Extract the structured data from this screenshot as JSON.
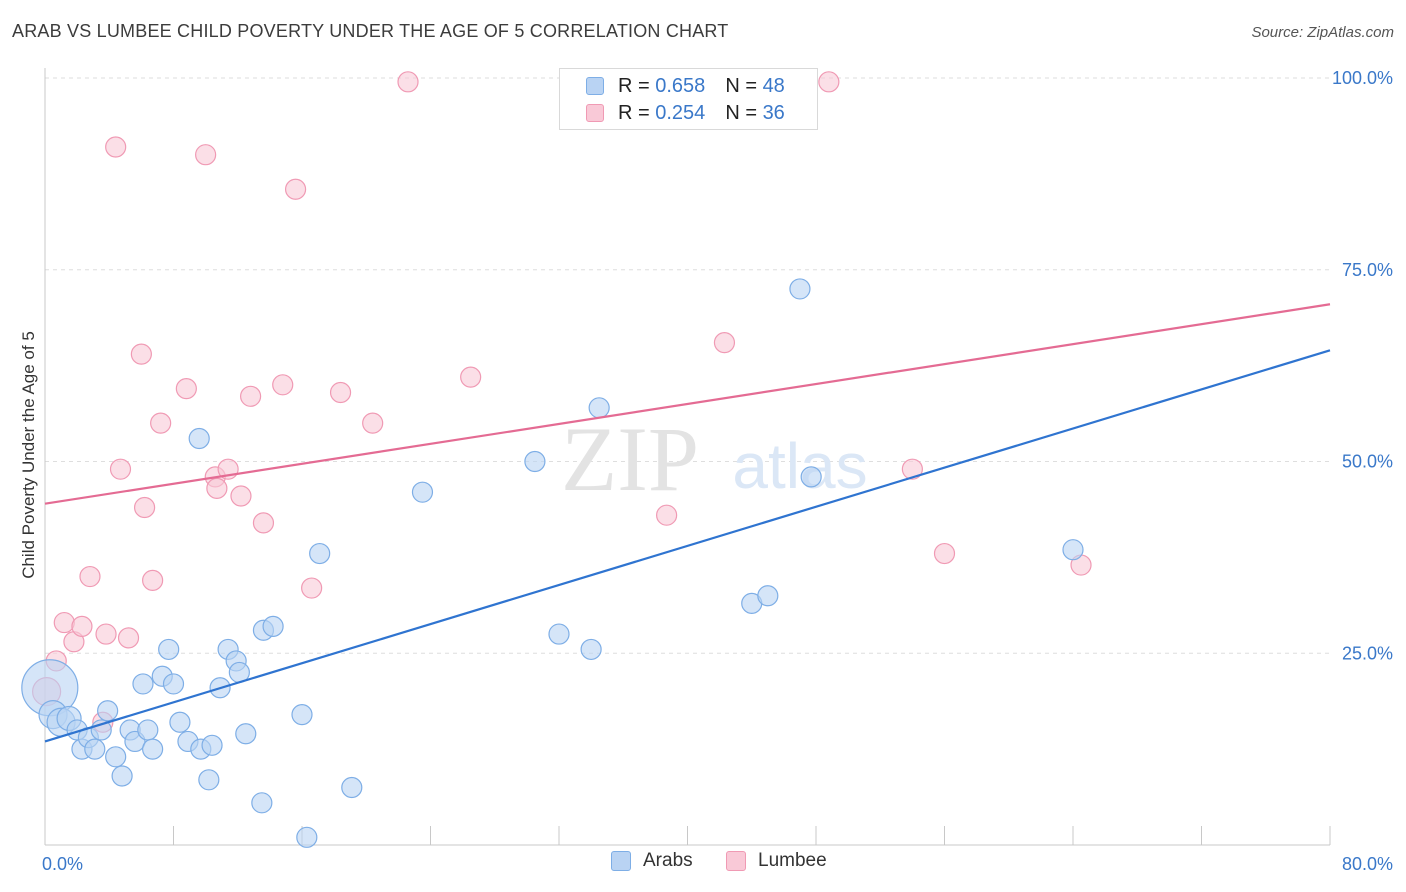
{
  "title": "ARAB VS LUMBEE CHILD POVERTY UNDER THE AGE OF 5 CORRELATION CHART",
  "source": "Source: ZipAtlas.com",
  "watermark": {
    "zip": "ZIP",
    "atlas": "atlas"
  },
  "legend": [
    {
      "r_label": "R = ",
      "r_value": "0.658",
      "n_label": "N = ",
      "n_value": "48"
    },
    {
      "r_label": "R = ",
      "r_value": "0.254",
      "n_label": "N = ",
      "n_value": "36"
    }
  ],
  "colors": {
    "arabs_fill": "#b9d3f3",
    "arabs_stroke": "#7eaee6",
    "arabs_line": "#2f74d0",
    "lumbee_fill": "#f9c9d7",
    "lumbee_stroke": "#f09ab4",
    "lumbee_line": "#e46b93",
    "tick_label": "#3a78c9"
  },
  "chart_data": {
    "type": "scatter",
    "title": "ARAB VS LUMBEE CHILD POVERTY UNDER THE AGE OF 5 CORRELATION CHART",
    "xlabel": "",
    "ylabel": "Child Poverty Under the Age of 5",
    "xlim": [
      0,
      80
    ],
    "ylim": [
      0,
      100
    ],
    "x_tick_labels": [
      {
        "value": 0,
        "label": "0.0%"
      },
      {
        "value": 80,
        "label": "80.0%"
      }
    ],
    "y_tick_labels": [
      {
        "value": 25,
        "label": "25.0%"
      },
      {
        "value": 50,
        "label": "50.0%"
      },
      {
        "value": 75,
        "label": "75.0%"
      },
      {
        "value": 100,
        "label": "100.0%"
      }
    ],
    "grid": true,
    "legend_position": "top-center",
    "series": [
      {
        "name": "Arabs",
        "r": 0.658,
        "n": 48,
        "trend": {
          "x0": 0,
          "y0": 13.5,
          "x1": 80,
          "y1": 64.5
        },
        "points": [
          [
            0.3,
            20.5,
            28
          ],
          [
            0.5,
            17.0,
            14
          ],
          [
            1.0,
            16.0,
            14
          ],
          [
            1.5,
            16.5,
            12
          ],
          [
            2.0,
            15.0,
            10
          ],
          [
            2.3,
            12.5,
            10
          ],
          [
            2.7,
            14.0,
            10
          ],
          [
            3.1,
            12.5,
            10
          ],
          [
            3.5,
            15.0,
            10
          ],
          [
            3.9,
            17.5,
            10
          ],
          [
            4.4,
            11.5,
            10
          ],
          [
            4.8,
            9.0,
            10
          ],
          [
            5.3,
            15.0,
            10
          ],
          [
            5.6,
            13.5,
            10
          ],
          [
            6.1,
            21.0,
            10
          ],
          [
            6.4,
            15.0,
            10
          ],
          [
            6.7,
            12.5,
            10
          ],
          [
            7.3,
            22.0,
            10
          ],
          [
            7.7,
            25.5,
            10
          ],
          [
            8.0,
            21.0,
            10
          ],
          [
            8.4,
            16.0,
            10
          ],
          [
            8.9,
            13.5,
            10
          ],
          [
            9.6,
            53.0,
            10
          ],
          [
            9.7,
            12.5,
            10
          ],
          [
            10.2,
            8.5,
            10
          ],
          [
            10.4,
            13.0,
            10
          ],
          [
            10.9,
            20.5,
            10
          ],
          [
            11.4,
            25.5,
            10
          ],
          [
            11.9,
            24.0,
            10
          ],
          [
            12.1,
            22.5,
            10
          ],
          [
            12.5,
            14.5,
            10
          ],
          [
            13.5,
            5.5,
            10
          ],
          [
            13.6,
            28.0,
            10
          ],
          [
            14.2,
            28.5,
            10
          ],
          [
            16.3,
            1.0,
            10
          ],
          [
            16.0,
            17.0,
            10
          ],
          [
            17.1,
            38.0,
            10
          ],
          [
            19.1,
            7.5,
            10
          ],
          [
            23.5,
            46.0,
            10
          ],
          [
            30.5,
            50.0,
            10
          ],
          [
            32.0,
            27.5,
            10
          ],
          [
            34.0,
            25.5,
            10
          ],
          [
            34.5,
            57.0,
            10
          ],
          [
            44.0,
            31.5,
            10
          ],
          [
            45.0,
            32.5,
            10
          ],
          [
            47.0,
            72.5,
            10
          ],
          [
            47.7,
            48.0,
            10
          ],
          [
            64.0,
            38.5,
            10
          ]
        ]
      },
      {
        "name": "Lumbee",
        "r": 0.254,
        "n": 36,
        "trend": {
          "x0": 0,
          "y0": 44.5,
          "x1": 80,
          "y1": 70.5
        },
        "points": [
          [
            0.1,
            20.0,
            14
          ],
          [
            0.7,
            24.0,
            10
          ],
          [
            1.2,
            29.0,
            10
          ],
          [
            1.8,
            26.5,
            10
          ],
          [
            2.3,
            28.5,
            10
          ],
          [
            2.8,
            35.0,
            10
          ],
          [
            3.6,
            16.0,
            10
          ],
          [
            3.8,
            27.5,
            10
          ],
          [
            4.4,
            91.0,
            10
          ],
          [
            4.7,
            49.0,
            10
          ],
          [
            5.2,
            27.0,
            10
          ],
          [
            6.0,
            64.0,
            10
          ],
          [
            6.2,
            44.0,
            10
          ],
          [
            6.7,
            34.5,
            10
          ],
          [
            7.2,
            55.0,
            10
          ],
          [
            8.8,
            59.5,
            10
          ],
          [
            10.0,
            90.0,
            10
          ],
          [
            10.6,
            48.0,
            10
          ],
          [
            10.7,
            46.5,
            10
          ],
          [
            11.4,
            49.0,
            10
          ],
          [
            12.2,
            45.5,
            10
          ],
          [
            12.8,
            58.5,
            10
          ],
          [
            13.6,
            42.0,
            10
          ],
          [
            14.8,
            60.0,
            10
          ],
          [
            15.6,
            85.5,
            10
          ],
          [
            16.6,
            33.5,
            10
          ],
          [
            18.4,
            59.0,
            10
          ],
          [
            20.4,
            55.0,
            10
          ],
          [
            22.6,
            99.5,
            10
          ],
          [
            26.5,
            61.0,
            10
          ],
          [
            38.7,
            43.0,
            10
          ],
          [
            42.3,
            65.5,
            10
          ],
          [
            48.8,
            99.5,
            10
          ],
          [
            54.0,
            49.0,
            10
          ],
          [
            56.0,
            38.0,
            10
          ],
          [
            64.5,
            36.5,
            10
          ]
        ]
      }
    ]
  }
}
